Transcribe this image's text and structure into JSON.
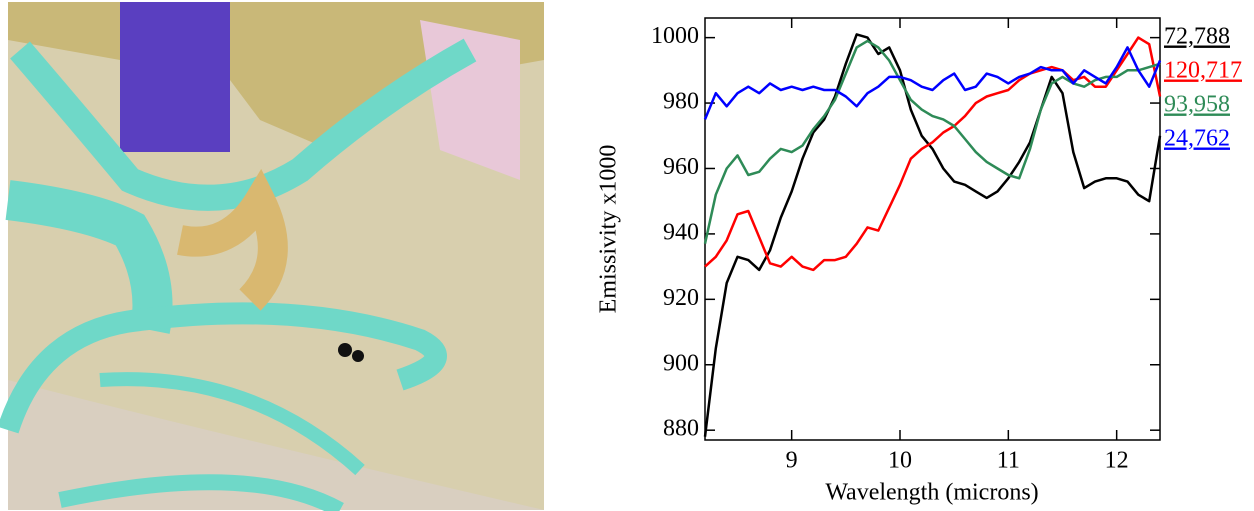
{
  "chart_data": {
    "type": "line",
    "xlabel": "Wavelength (microns)",
    "ylabel": "Emissivity x1000",
    "x": [
      8.2,
      8.3,
      8.4,
      8.5,
      8.6,
      8.7,
      8.8,
      8.9,
      9.0,
      9.1,
      9.2,
      9.3,
      9.4,
      9.5,
      9.6,
      9.7,
      9.8,
      9.9,
      10.0,
      10.1,
      10.2,
      10.3,
      10.4,
      10.5,
      10.6,
      10.7,
      10.8,
      10.9,
      11.0,
      11.1,
      11.2,
      11.3,
      11.4,
      11.5,
      11.6,
      11.7,
      11.8,
      11.9,
      12.0,
      12.1,
      12.2,
      12.3,
      12.4
    ],
    "series": [
      {
        "name": "72,788",
        "color": "#000000",
        "values": [
          878,
          905,
          925,
          933,
          932,
          929,
          935,
          945,
          953,
          963,
          971,
          975,
          982,
          992,
          1001,
          1000,
          995,
          997,
          990,
          978,
          970,
          966,
          960,
          956,
          955,
          953,
          951,
          953,
          957,
          962,
          968,
          978,
          988,
          983,
          965,
          954,
          956,
          957,
          957,
          956,
          952,
          950,
          970
        ]
      },
      {
        "name": "120,717",
        "color": "#ff0000",
        "values": [
          930,
          933,
          938,
          946,
          947,
          939,
          931,
          930,
          933,
          930,
          929,
          932,
          932,
          933,
          937,
          942,
          941,
          948,
          955,
          963,
          966,
          968,
          971,
          973,
          976,
          980,
          982,
          983,
          984,
          987,
          989,
          990,
          991,
          990,
          987,
          988,
          985,
          985,
          990,
          995,
          1000,
          998,
          982
        ]
      },
      {
        "name": "93,958",
        "color": "#2e8b57",
        "values": [
          937,
          952,
          960,
          964,
          958,
          959,
          963,
          966,
          965,
          967,
          972,
          976,
          981,
          989,
          997,
          999,
          997,
          993,
          987,
          981,
          978,
          976,
          975,
          973,
          969,
          965,
          962,
          960,
          958,
          957,
          966,
          978,
          986,
          988,
          986,
          985,
          987,
          988,
          988,
          990,
          990,
          991,
          992
        ]
      },
      {
        "name": "24,762",
        "color": "#0000ff",
        "values": [
          975,
          983,
          979,
          983,
          985,
          983,
          986,
          984,
          985,
          984,
          985,
          984,
          984,
          982,
          979,
          983,
          985,
          988,
          988,
          987,
          985,
          984,
          987,
          989,
          984,
          985,
          989,
          988,
          986,
          988,
          989,
          991,
          990,
          990,
          986,
          990,
          988,
          986,
          991,
          997,
          990,
          985,
          993
        ]
      }
    ],
    "xlim": [
      8.2,
      12.4
    ],
    "xticks": [
      9,
      10,
      11,
      12
    ],
    "ylim": [
      877,
      1006
    ],
    "yticks": [
      880,
      900,
      920,
      940,
      960,
      980,
      1000
    ]
  }
}
